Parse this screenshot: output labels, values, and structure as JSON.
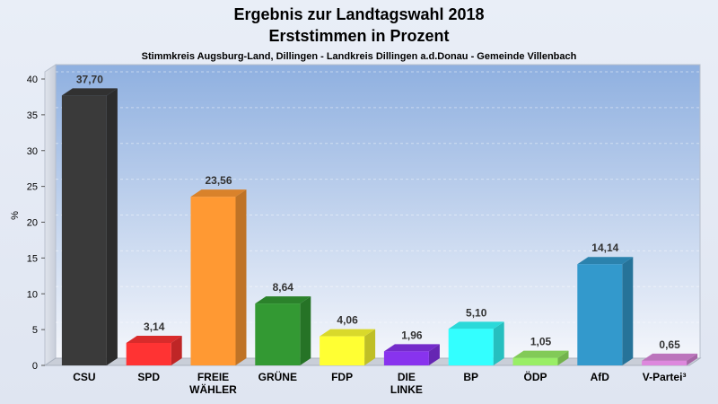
{
  "chart_data": {
    "type": "bar",
    "title": "Ergebnis zur Landtagswahl 2018",
    "title2": "Erststimmen in Prozent",
    "subtitle": "Stimmkreis Augsburg-Land, Dillingen - Landkreis Dillingen a.d.Donau - Gemeinde Villenbach",
    "ylabel": "%",
    "ylim": [
      0,
      40
    ],
    "yticks": [
      "0",
      "5",
      "10",
      "15",
      "20",
      "25",
      "30",
      "35",
      "40"
    ],
    "grid": true,
    "categories": [
      [
        "CSU"
      ],
      [
        "SPD"
      ],
      [
        "FREIE",
        "WÄHLER"
      ],
      [
        "GRÜNE"
      ],
      [
        "FDP"
      ],
      [
        "DIE",
        "LINKE"
      ],
      [
        "BP"
      ],
      [
        "ÖDP"
      ],
      [
        "AfD"
      ],
      [
        "V-Partei³"
      ]
    ],
    "values": [
      37.7,
      3.14,
      23.56,
      8.64,
      4.06,
      1.96,
      5.1,
      1.05,
      14.14,
      0.65
    ],
    "value_labels": [
      "37,70",
      "3,14",
      "23,56",
      "8,64",
      "4,06",
      "1,96",
      "5,10",
      "1,05",
      "14,14",
      "0,65"
    ],
    "colors": [
      "#3a3a3a",
      "#ff3333",
      "#ff9933",
      "#339933",
      "#ffff33",
      "#8833ee",
      "#33ffff",
      "#99ee66",
      "#3399cc",
      "#dd88dd"
    ]
  }
}
